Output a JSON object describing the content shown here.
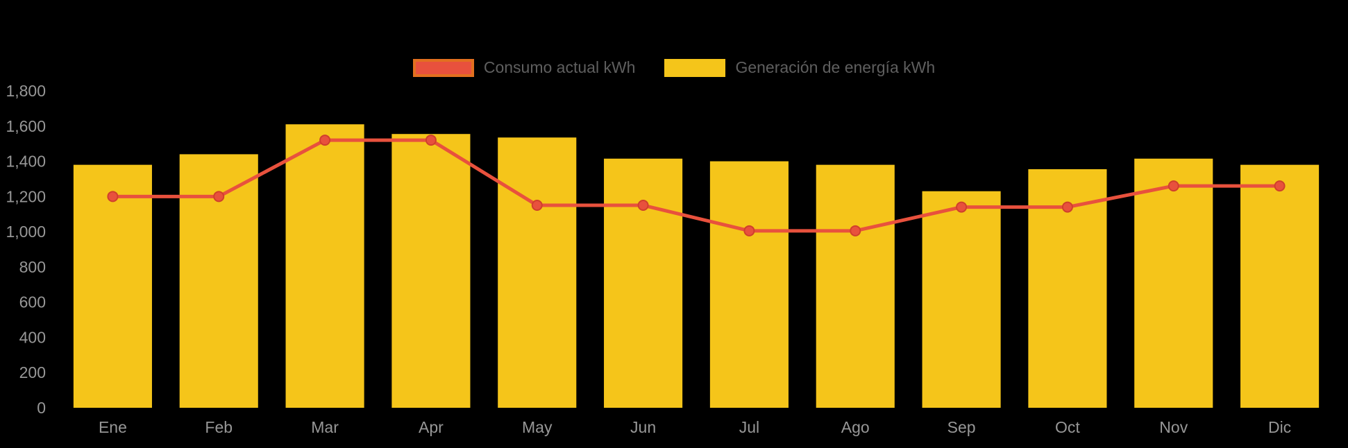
{
  "chart_data": {
    "type": "bar",
    "subtype": "bar-with-line-overlay",
    "title": "",
    "xlabel": "",
    "ylabel": "",
    "categories": [
      "Ene",
      "Feb",
      "Mar",
      "Apr",
      "May",
      "Jun",
      "Jul",
      "Ago",
      "Sep",
      "Oct",
      "Nov",
      "Dic"
    ],
    "series": [
      {
        "name": "Consumo actual kWh",
        "type": "line",
        "values": [
          1200,
          1200,
          1520,
          1520,
          1150,
          1150,
          1005,
          1005,
          1140,
          1140,
          1260,
          1260
        ]
      },
      {
        "name": "Generación de energía kWh",
        "type": "bar",
        "values": [
          1380,
          1440,
          1610,
          1555,
          1535,
          1415,
          1400,
          1380,
          1230,
          1355,
          1415,
          1380
        ]
      }
    ],
    "ylim": [
      0,
      1800
    ],
    "ytick_step": 200,
    "ytick_labels": [
      "0",
      "200",
      "400",
      "600",
      "800",
      "1,000",
      "1,200",
      "1,400",
      "1,600",
      "1,800"
    ],
    "grid": false,
    "legend_position": "top-center"
  },
  "colors": {
    "bar_fill": "#F5C51A",
    "line_stroke": "#E8513D",
    "marker_fill": "#E8513D",
    "marker_stroke": "#D0402C",
    "line_swatch_border": "#E2701F",
    "axis_text": "#979797",
    "legend_text": "#5F5F5F",
    "background": "#000000"
  }
}
